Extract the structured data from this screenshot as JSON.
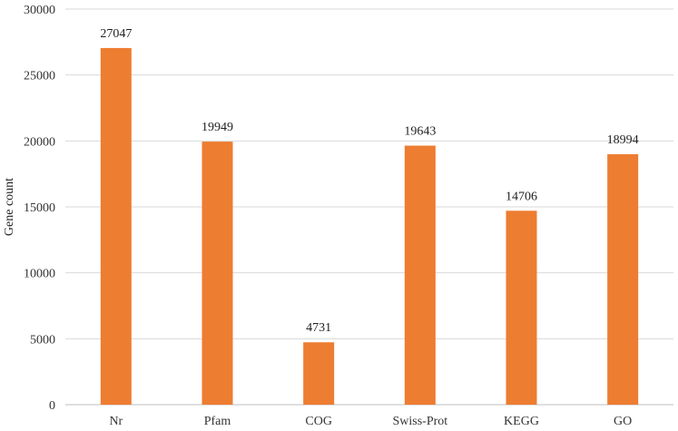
{
  "chart_data": {
    "type": "bar",
    "categories": [
      "Nr",
      "Pfam",
      "COG",
      "Swiss-Prot",
      "KEGG",
      "GO"
    ],
    "values": [
      27047,
      19949,
      4731,
      19643,
      14706,
      18994
    ],
    "data_labels": [
      "27047",
      "19949",
      "4731",
      "19643",
      "14706",
      "18994"
    ],
    "title": "",
    "xlabel": "",
    "ylabel": "Gene count",
    "ylim": [
      0,
      30000
    ],
    "y_ticks": [
      0,
      5000,
      10000,
      15000,
      20000,
      25000,
      30000
    ],
    "y_tick_labels": [
      "0",
      "5000",
      "10000",
      "15000",
      "20000",
      "25000",
      "30000"
    ],
    "grid": true,
    "legend": "none",
    "bar_color": "#ED7D31"
  }
}
